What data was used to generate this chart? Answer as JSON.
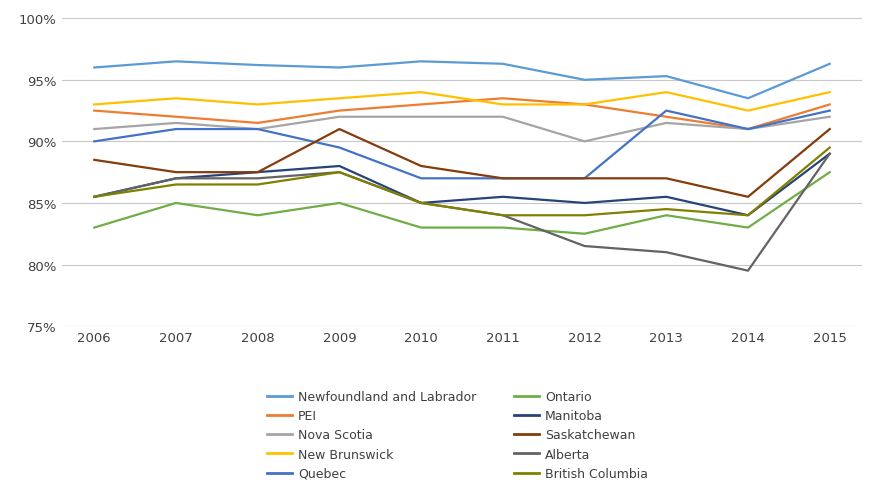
{
  "years": [
    2006,
    2007,
    2008,
    2009,
    2010,
    2011,
    2012,
    2013,
    2014,
    2015
  ],
  "series": {
    "Newfoundland and Labrador": [
      96.0,
      96.5,
      96.2,
      96.0,
      96.5,
      96.3,
      95.0,
      95.3,
      93.5,
      96.3
    ],
    "PEI": [
      92.5,
      92.0,
      91.5,
      92.5,
      93.0,
      93.5,
      93.0,
      92.0,
      91.0,
      93.0
    ],
    "Nova Scotia": [
      91.0,
      91.5,
      91.0,
      92.0,
      92.0,
      92.0,
      90.0,
      91.5,
      91.0,
      92.0
    ],
    "New Brunswick": [
      93.0,
      93.5,
      93.0,
      93.5,
      94.0,
      93.0,
      93.0,
      94.0,
      92.5,
      94.0
    ],
    "Quebec": [
      90.0,
      91.0,
      91.0,
      89.5,
      87.0,
      87.0,
      87.0,
      92.5,
      91.0,
      92.5
    ],
    "Ontario": [
      83.0,
      85.0,
      84.0,
      85.0,
      83.0,
      83.0,
      82.5,
      84.0,
      83.0,
      87.5
    ],
    "Manitoba": [
      85.5,
      87.0,
      87.5,
      88.0,
      85.0,
      85.5,
      85.0,
      85.5,
      84.0,
      89.0
    ],
    "Saskatchewan": [
      88.5,
      87.5,
      87.5,
      91.0,
      88.0,
      87.0,
      87.0,
      87.0,
      85.5,
      91.0
    ],
    "Alberta": [
      85.5,
      87.0,
      87.0,
      87.5,
      85.0,
      84.0,
      81.5,
      81.0,
      79.5,
      89.0
    ],
    "British Columbia": [
      85.5,
      86.5,
      86.5,
      87.5,
      85.0,
      84.0,
      84.0,
      84.5,
      84.0,
      89.5
    ]
  },
  "colors": {
    "Newfoundland and Labrador": "#5B9BD5",
    "PEI": "#ED7D31",
    "Nova Scotia": "#A5A5A5",
    "New Brunswick": "#FFC000",
    "Quebec": "#4472C4",
    "Ontario": "#70AD47",
    "Manitoba": "#264478",
    "Saskatchewan": "#843C0C",
    "Alberta": "#636363",
    "British Columbia": "#808000"
  },
  "ylim": [
    75,
    100
  ],
  "yticks": [
    75,
    80,
    85,
    90,
    95,
    100
  ],
  "ytick_labels": [
    "75%",
    "80%",
    "85%",
    "90%",
    "95%",
    "100%"
  ],
  "background_color": "#ffffff",
  "grid_color": "#C8C8C8",
  "legend_order": [
    "Newfoundland and Labrador",
    "PEI",
    "Nova Scotia",
    "New Brunswick",
    "Quebec",
    "Ontario",
    "Manitoba",
    "Saskatchewan",
    "Alberta",
    "British Columbia"
  ]
}
